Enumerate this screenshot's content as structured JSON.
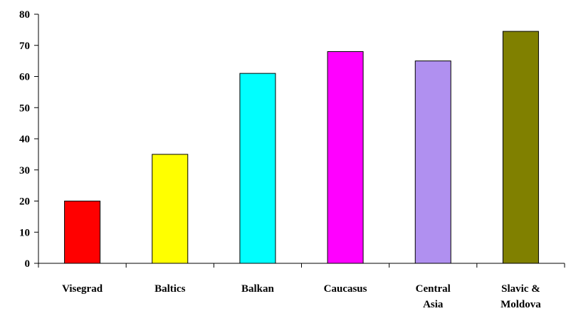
{
  "chart_data": {
    "type": "bar",
    "title": "",
    "xlabel": "",
    "ylabel": "",
    "categories": [
      [
        "Visegrad"
      ],
      [
        "Baltics"
      ],
      [
        "Balkan"
      ],
      [
        "Caucasus"
      ],
      [
        "Central",
        "Asia"
      ],
      [
        "Slavic &",
        "Moldova"
      ]
    ],
    "values": [
      20,
      35,
      61,
      68,
      65,
      74.5
    ],
    "colors": [
      "#ff0000",
      "#ffff00",
      "#00ffff",
      "#ff00ff",
      "#b090f0",
      "#808000"
    ],
    "ylim": [
      0,
      80
    ],
    "yticks": [
      0,
      10,
      20,
      30,
      40,
      50,
      60,
      70,
      80
    ],
    "grid": false,
    "legend": "none"
  }
}
